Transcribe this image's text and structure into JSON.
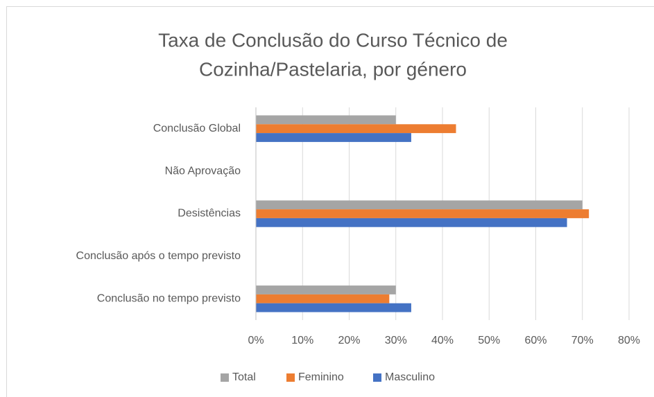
{
  "chart_data": {
    "type": "bar",
    "orientation": "horizontal",
    "title": [
      "Taxa de Conclusão do Curso  Técnico de",
      "Cozinha/Pastelaria, por género"
    ],
    "categories": [
      "Conclusão Global",
      "Não Aprovação",
      "Desistências",
      "Conclusão após o tempo previsto",
      "Conclusão no tempo previsto"
    ],
    "series": [
      {
        "name": "Total",
        "color": "#a5a5a5",
        "values": [
          30,
          0,
          70,
          0,
          30
        ]
      },
      {
        "name": "Feminino",
        "color": "#ed7d31",
        "values": [
          42.9,
          0,
          71.4,
          0,
          28.6
        ]
      },
      {
        "name": "Masculino",
        "color": "#4472c4",
        "values": [
          33.3,
          0,
          66.7,
          0,
          33.3
        ]
      }
    ],
    "xlim": [
      0,
      80
    ],
    "xticks": [
      {
        "value": 0,
        "label": "0%"
      },
      {
        "value": 10,
        "label": "10%"
      },
      {
        "value": 20,
        "label": "20%"
      },
      {
        "value": 30,
        "label": "30%"
      },
      {
        "value": 40,
        "label": "40%"
      },
      {
        "value": 50,
        "label": "50%"
      },
      {
        "value": 60,
        "label": "60%"
      },
      {
        "value": 70,
        "label": "70%"
      },
      {
        "value": 80,
        "label": "80%"
      }
    ],
    "grid": true,
    "legend": "bottom"
  }
}
